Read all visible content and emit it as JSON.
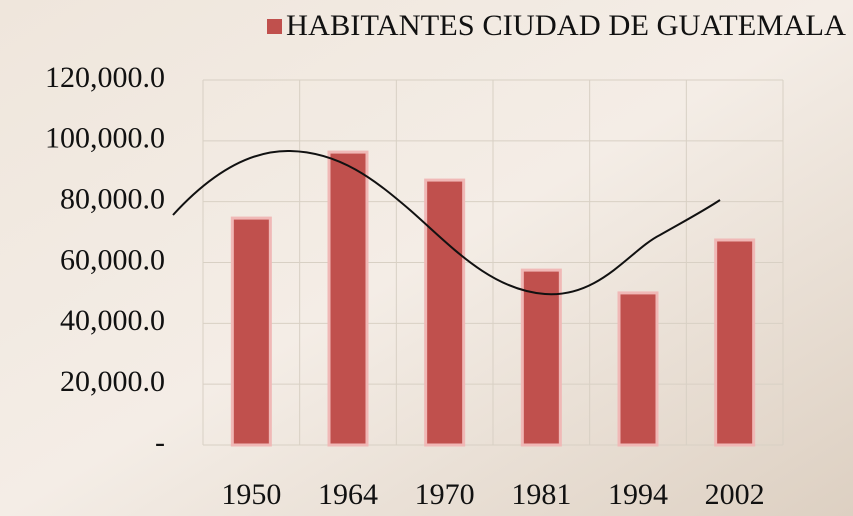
{
  "chart_data": {
    "type": "bar",
    "series": [
      {
        "name": "HABITANTES CIUDAD DE GUATEMALA",
        "color": "#c0504d",
        "values": [
          74600,
          96300,
          87100,
          57500,
          50000,
          67400
        ]
      }
    ],
    "categories": [
      "1950",
      "1964",
      "1970",
      "1981",
      "1994",
      "2002"
    ],
    "ylim": [
      0,
      120000
    ],
    "yticks": [
      {
        "value": 0,
        "label": "-"
      },
      {
        "value": 20000,
        "label": "20,000.0"
      },
      {
        "value": 40000,
        "label": "40,000.0"
      },
      {
        "value": 60000,
        "label": "60,000.0"
      },
      {
        "value": 80000,
        "label": "80,000.0"
      },
      {
        "value": 100000,
        "label": "100,000.0"
      },
      {
        "value": 120000,
        "label": "120,000.0"
      }
    ],
    "grid": true,
    "legend": "top"
  }
}
